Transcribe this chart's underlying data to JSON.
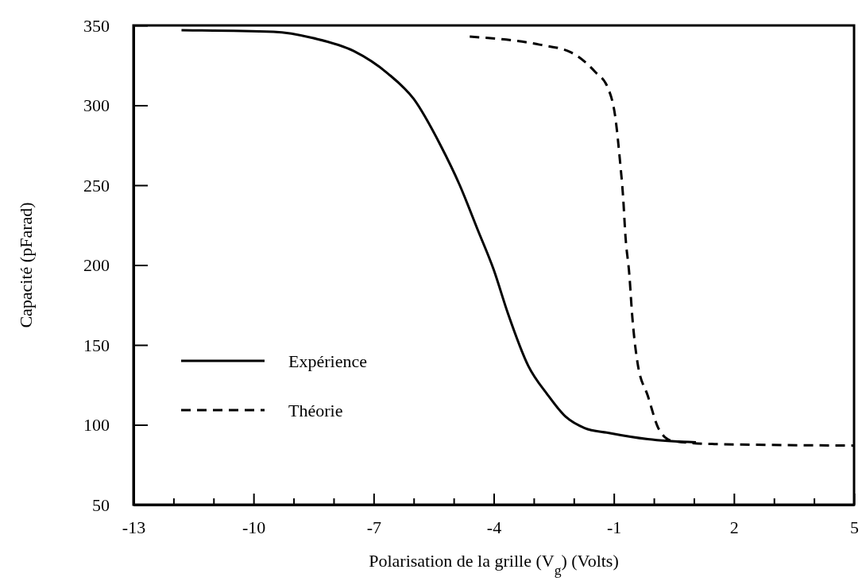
{
  "chart_data": {
    "type": "line",
    "xlabel": "Polarisation de la grille (V$_{g}$) (Volts)",
    "ylabel": "Capacité (pFarad)",
    "xlim": [
      -13,
      5
    ],
    "ylim": [
      50,
      350
    ],
    "xticks": [
      -13,
      {
        "value": -12,
        "label": null
      },
      {
        "value": -11,
        "label": null
      },
      -10,
      {
        "value": -9,
        "label": null
      },
      {
        "value": -8,
        "label": null
      },
      -7,
      {
        "value": -6,
        "label": null
      },
      {
        "value": -5,
        "label": null
      },
      -4,
      {
        "value": -3,
        "label": null
      },
      {
        "value": -2,
        "label": null
      },
      -1,
      {
        "value": 0,
        "label": null
      },
      {
        "value": 1,
        "label": null
      },
      2,
      {
        "value": 3,
        "label": null
      },
      {
        "value": 4,
        "label": null
      },
      5
    ],
    "yticks": [
      50,
      100,
      150,
      200,
      250,
      300,
      350
    ],
    "legend": "bottom left",
    "grid": false,
    "marker": "none",
    "series": [
      {
        "name": "Expérience",
        "color": "#000000",
        "line_style": "solid",
        "x": [
          -11.8,
          -9.5,
          -8.5,
          -7.5,
          -6.65,
          -6.0,
          -5.33,
          -4.85,
          -4.4,
          -4.0,
          -3.65,
          -3.14,
          -2.66,
          -2.2,
          -1.73,
          -1.15,
          -0.15,
          1.05
        ],
        "values": [
          347,
          346,
          342,
          334,
          320,
          304,
          275,
          250,
          222,
          197,
          170,
          137,
          119,
          105,
          98,
          95,
          91,
          89
        ]
      },
      {
        "name": "Théorie",
        "color": "#000000",
        "line_style": "dashed",
        "x": [
          -4.6,
          -2.86,
          -2.06,
          -1.47,
          -1.15,
          -0.95,
          -0.85,
          -0.77,
          -0.71,
          -0.61,
          -0.55,
          -0.41,
          -0.15,
          0.13,
          0.45,
          1.45,
          5.0
        ],
        "values": [
          343,
          338,
          333,
          321,
          311,
          290,
          266,
          243,
          218,
          193,
          171,
          139,
          118,
          97,
          90,
          88,
          87
        ]
      }
    ]
  }
}
